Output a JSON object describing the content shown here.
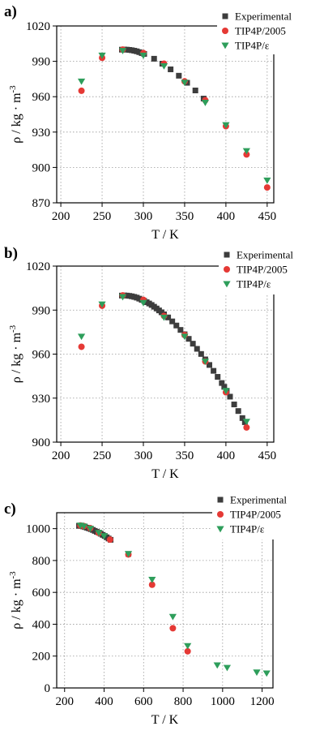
{
  "colors": {
    "experimental": "#3d3d3d",
    "tip4p2005": "#e53935",
    "tip4pe": "#2e9e5b"
  },
  "chart_data": [
    {
      "panel": "a)",
      "type": "scatter",
      "xlabel": "T / K",
      "ylabel": "ρ / kg · m-3",
      "xlim": [
        195,
        458
      ],
      "ylim": [
        870,
        1020
      ],
      "xticks": [
        200,
        250,
        300,
        350,
        400,
        450
      ],
      "yticks": [
        870,
        900,
        930,
        960,
        990,
        1020
      ],
      "grid": true,
      "legend_position": "top-right",
      "series": [
        {
          "name": "Experimental",
          "marker": "square",
          "color": "#3d3d3d",
          "points": [
            [
              274,
              999.9
            ],
            [
              277,
              1000.0
            ],
            [
              280,
              999.9
            ],
            [
              283,
              999.7
            ],
            [
              286,
              999.4
            ],
            [
              289,
              999.0
            ],
            [
              292,
              998.5
            ],
            [
              295,
              997.8
            ],
            [
              298,
              997.0
            ],
            [
              301,
              996.3
            ],
            [
              313,
              992.2
            ],
            [
              323,
              988.0
            ],
            [
              333,
              983.2
            ],
            [
              343,
              977.8
            ],
            [
              353,
              971.8
            ],
            [
              363,
              965.3
            ],
            [
              373,
              958.4
            ]
          ]
        },
        {
          "name": "TIP4P/2005",
          "marker": "circle",
          "color": "#e53935",
          "points": [
            [
              225,
              965
            ],
            [
              250,
              993
            ],
            [
              275,
              1000
            ],
            [
              300,
              997
            ],
            [
              325,
              988
            ],
            [
              350,
              973
            ],
            [
              375,
              957
            ],
            [
              400,
              935
            ],
            [
              425,
              911
            ],
            [
              450,
              883
            ]
          ]
        },
        {
          "name": "TIP4P/ε",
          "marker": "triangle-down",
          "color": "#2e9e5b",
          "points": [
            [
              225,
              973
            ],
            [
              250,
              995
            ],
            [
              275,
              999
            ],
            [
              300,
              995
            ],
            [
              325,
              986
            ],
            [
              350,
              972
            ],
            [
              375,
              955
            ],
            [
              400,
              936
            ],
            [
              425,
              914
            ],
            [
              450,
              889
            ]
          ]
        }
      ]
    },
    {
      "panel": "b)",
      "type": "scatter",
      "xlabel": "T / K",
      "ylabel": "ρ / kg · m-3",
      "xlim": [
        195,
        458
      ],
      "ylim": [
        900,
        1020
      ],
      "xticks": [
        200,
        250,
        300,
        350,
        400,
        450
      ],
      "yticks": [
        900,
        930,
        960,
        990,
        1020
      ],
      "grid": true,
      "legend_position": "top-right",
      "series": [
        {
          "name": "Experimental",
          "marker": "square",
          "color": "#3d3d3d",
          "points": [
            [
              274,
              999.9
            ],
            [
              277,
              1000.0
            ],
            [
              280,
              999.9
            ],
            [
              283,
              999.7
            ],
            [
              286,
              999.4
            ],
            [
              289,
              999.0
            ],
            [
              292,
              998.5
            ],
            [
              295,
              997.8
            ],
            [
              298,
              997.0
            ],
            [
              301,
              996.3
            ],
            [
              304,
              995.4
            ],
            [
              307,
              994.5
            ],
            [
              310,
              993.5
            ],
            [
              313,
              992.3
            ],
            [
              316,
              991.1
            ],
            [
              319,
              989.8
            ],
            [
              322,
              988.5
            ],
            [
              325,
              987.1
            ],
            [
              330,
              985.0
            ],
            [
              335,
              982.3
            ],
            [
              340,
              979.5
            ],
            [
              345,
              976.5
            ],
            [
              350,
              973.5
            ],
            [
              355,
              970.4
            ],
            [
              360,
              967.1
            ],
            [
              365,
              963.6
            ],
            [
              370,
              960.1
            ],
            [
              375,
              956.4
            ],
            [
              380,
              952.6
            ],
            [
              385,
              948.6
            ],
            [
              390,
              944.5
            ],
            [
              395,
              940.3
            ],
            [
              398,
              937.7
            ],
            [
              401,
              935.0
            ],
            [
              405,
              931.0
            ],
            [
              410,
              925.7
            ],
            [
              415,
              921.2
            ],
            [
              420,
              916.4
            ],
            [
              423,
              913.6
            ]
          ]
        },
        {
          "name": "TIP4P/2005",
          "marker": "circle",
          "color": "#e53935",
          "points": [
            [
              225,
              965
            ],
            [
              250,
              993
            ],
            [
              275,
              1000
            ],
            [
              300,
              997
            ],
            [
              325,
              986
            ],
            [
              350,
              973
            ],
            [
              375,
              955
            ],
            [
              400,
              934
            ],
            [
              425,
              910
            ]
          ]
        },
        {
          "name": "TIP4P/ε",
          "marker": "triangle-down",
          "color": "#2e9e5b",
          "points": [
            [
              225,
              972
            ],
            [
              250,
              994
            ],
            [
              275,
              999
            ],
            [
              300,
              995
            ],
            [
              325,
              985
            ],
            [
              350,
              972
            ],
            [
              375,
              955
            ],
            [
              400,
              935
            ],
            [
              425,
              914
            ]
          ]
        }
      ]
    },
    {
      "panel": "c)",
      "type": "scatter",
      "xlabel": "T / K",
      "ylabel": "ρ / kg · m-3",
      "xlim": [
        160,
        1255
      ],
      "ylim": [
        0,
        1100
      ],
      "xticks": [
        200,
        400,
        600,
        800,
        1000,
        1200
      ],
      "yticks": [
        0,
        200,
        400,
        600,
        800,
        1000
      ],
      "grid": true,
      "legend_position": "top-right",
      "series": [
        {
          "name": "Experimental",
          "marker": "square",
          "color": "#3d3d3d",
          "points": [
            [
              273,
              1018
            ],
            [
              283,
              1017
            ],
            [
              293,
              1014
            ],
            [
              303,
              1010
            ],
            [
              313,
              1006
            ],
            [
              323,
              1002
            ],
            [
              333,
              997
            ],
            [
              343,
              992
            ],
            [
              353,
              986
            ],
            [
              363,
              980
            ],
            [
              373,
              975
            ],
            [
              383,
              968
            ],
            [
              393,
              961
            ],
            [
              403,
              954
            ],
            [
              413,
              946
            ],
            [
              423,
              938
            ],
            [
              433,
              930
            ],
            [
              523,
              841
            ]
          ]
        },
        {
          "name": "TIP4P/2005",
          "marker": "circle",
          "color": "#e53935",
          "points": [
            [
              280,
              1020
            ],
            [
              298,
              1016
            ],
            [
              330,
              1003
            ],
            [
              373,
              973
            ],
            [
              430,
              931
            ],
            [
              523,
              838
            ],
            [
              643,
              648
            ],
            [
              748,
              375
            ],
            [
              823,
              230
            ]
          ]
        },
        {
          "name": "TIP4P/ε",
          "marker": "triangle-down",
          "color": "#2e9e5b",
          "points": [
            [
              280,
              1020
            ],
            [
              298,
              1014
            ],
            [
              330,
              1000
            ],
            [
              373,
              974
            ],
            [
              400,
              954
            ],
            [
              523,
              842
            ],
            [
              643,
              680
            ],
            [
              748,
              447
            ],
            [
              823,
              264
            ],
            [
              973,
              143
            ],
            [
              1023,
              127
            ],
            [
              1173,
              98
            ],
            [
              1223,
              92
            ]
          ]
        }
      ]
    }
  ]
}
